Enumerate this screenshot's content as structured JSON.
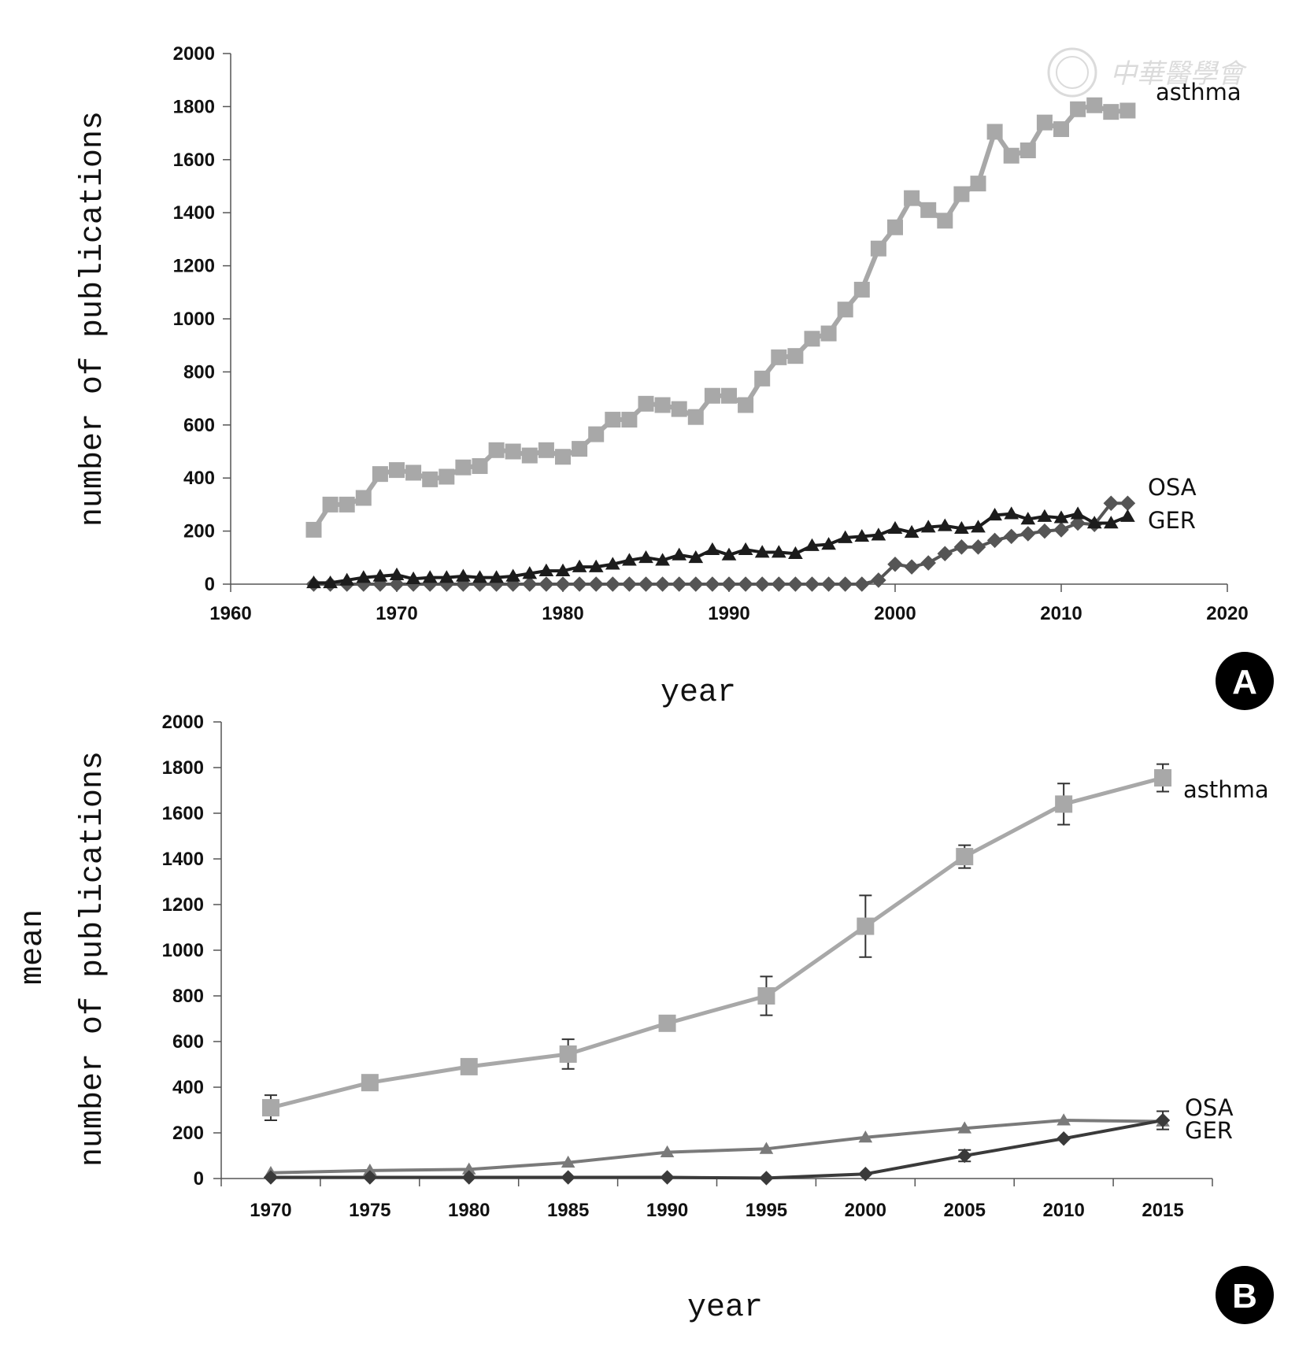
{
  "watermark": "中華醫學會",
  "chart_data": [
    {
      "panel": "A",
      "type": "line",
      "xlabel": "year",
      "ylabel": "number of publications",
      "xlim": [
        1960,
        2020
      ],
      "ylim": [
        0,
        2000
      ],
      "xticks": [
        "1960",
        "1970",
        "1980",
        "1990",
        "2000",
        "2010",
        "2020"
      ],
      "yticks": [
        "0",
        "200",
        "400",
        "600",
        "800",
        "1000",
        "1200",
        "1400",
        "1600",
        "1800",
        "2000"
      ],
      "grid": false,
      "x": [
        1965,
        1966,
        1967,
        1968,
        1969,
        1970,
        1971,
        1972,
        1973,
        1974,
        1975,
        1976,
        1977,
        1978,
        1979,
        1980,
        1981,
        1982,
        1983,
        1984,
        1985,
        1986,
        1987,
        1988,
        1989,
        1990,
        1991,
        1992,
        1993,
        1994,
        1995,
        1996,
        1997,
        1998,
        1999,
        2000,
        2001,
        2002,
        2003,
        2004,
        2005,
        2006,
        2007,
        2008,
        2009,
        2010,
        2011,
        2012,
        2013,
        2014
      ],
      "series": [
        {
          "name": "asthma",
          "marker": "square",
          "color": "#a8a8a8",
          "values": [
            205,
            300,
            300,
            325,
            415,
            430,
            420,
            395,
            405,
            440,
            445,
            505,
            500,
            485,
            505,
            480,
            510,
            565,
            620,
            620,
            680,
            675,
            660,
            630,
            710,
            710,
            675,
            775,
            855,
            860,
            925,
            945,
            1035,
            1110,
            1265,
            1345,
            1455,
            1410,
            1370,
            1470,
            1510,
            1705,
            1615,
            1635,
            1740,
            1715,
            1790,
            1805,
            1780,
            1785
          ]
        },
        {
          "name": "OSA",
          "marker": "diamond",
          "color": "#555555",
          "values": [
            0,
            0,
            0,
            0,
            0,
            0,
            0,
            0,
            0,
            0,
            0,
            0,
            0,
            0,
            0,
            0,
            0,
            0,
            0,
            0,
            0,
            0,
            0,
            0,
            0,
            0,
            0,
            0,
            0,
            0,
            0,
            0,
            0,
            0,
            15,
            75,
            65,
            80,
            115,
            140,
            140,
            165,
            180,
            190,
            200,
            205,
            230,
            225,
            305,
            305
          ]
        },
        {
          "name": "GER",
          "marker": "triangle",
          "color": "#1c1c1c",
          "values": [
            5,
            5,
            15,
            25,
            30,
            35,
            20,
            25,
            25,
            30,
            25,
            25,
            30,
            40,
            50,
            50,
            65,
            65,
            75,
            90,
            100,
            90,
            110,
            100,
            130,
            110,
            130,
            120,
            120,
            115,
            145,
            150,
            175,
            180,
            185,
            210,
            195,
            215,
            220,
            210,
            215,
            260,
            265,
            245,
            255,
            250,
            265,
            230,
            230,
            255
          ]
        }
      ]
    },
    {
      "panel": "B",
      "type": "line",
      "xlabel": "year",
      "ylabel": "mean number of publications",
      "ylabel_lines": [
        "mean",
        "number of publications"
      ],
      "xlim": [
        1970,
        2015
      ],
      "ylim": [
        0,
        2000
      ],
      "categories": [
        "1970",
        "1975",
        "1980",
        "1985",
        "1990",
        "1995",
        "2000",
        "2005",
        "2010",
        "2015"
      ],
      "yticks": [
        "0",
        "200",
        "400",
        "600",
        "800",
        "1000",
        "1200",
        "1400",
        "1600",
        "1800",
        "2000"
      ],
      "grid": false,
      "series": [
        {
          "name": "asthma",
          "marker": "square",
          "color": "#a8a8a8",
          "values": [
            310,
            420,
            490,
            545,
            680,
            800,
            1105,
            1410,
            1640,
            1755
          ],
          "errors": [
            55,
            0,
            0,
            65,
            0,
            85,
            135,
            50,
            90,
            60
          ]
        },
        {
          "name": "OSA",
          "marker": "diamond",
          "color": "#3a3a3a",
          "values": [
            5,
            5,
            5,
            5,
            5,
            2,
            20,
            100,
            175,
            255
          ],
          "errors": [
            0,
            0,
            0,
            0,
            0,
            0,
            0,
            25,
            0,
            40
          ]
        },
        {
          "name": "GER",
          "marker": "triangle",
          "color": "#7a7a7a",
          "values": [
            25,
            35,
            40,
            70,
            115,
            130,
            180,
            220,
            255,
            250
          ],
          "errors": [
            0,
            0,
            0,
            0,
            0,
            0,
            0,
            0,
            0,
            0
          ]
        }
      ]
    }
  ]
}
